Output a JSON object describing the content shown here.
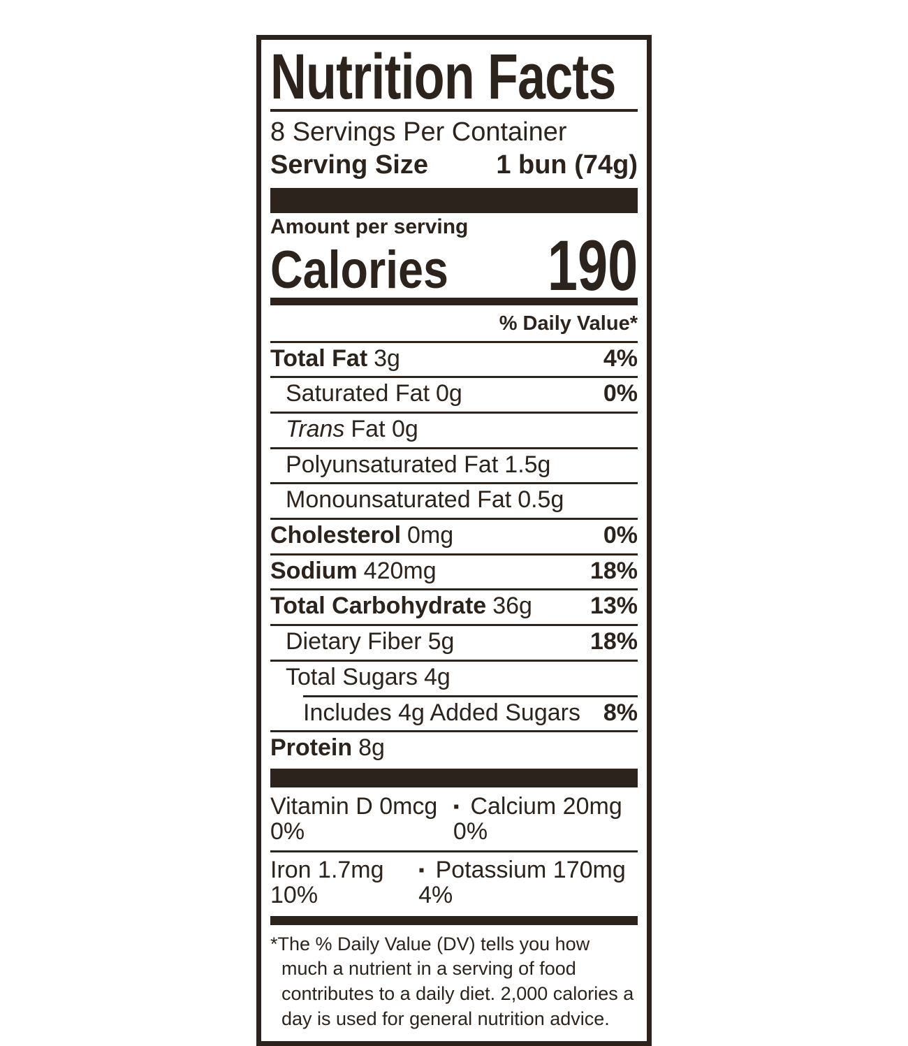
{
  "label": {
    "title": "Nutrition Facts",
    "servings_per_container": "8 Servings Per Container",
    "serving_size_label": "Serving Size",
    "serving_size_value": "1 bun (74g)",
    "amount_per_serving": "Amount per serving",
    "calories_label": "Calories",
    "calories_value": "190",
    "daily_value_header": "% Daily Value*",
    "colors": {
      "ink": "#2b231c",
      "background": "#ffffff"
    },
    "nutrients": [
      {
        "name": "Total Fat",
        "amount": "3g",
        "dv": "4%"
      },
      {
        "name": "Saturated Fat",
        "amount": "0g",
        "dv": "0%"
      },
      {
        "name": "Trans",
        "amount": "Fat 0g",
        "dv": ""
      },
      {
        "name": "Polyunsaturated Fat",
        "amount": "1.5g",
        "dv": ""
      },
      {
        "name": "Monounsaturated Fat",
        "amount": "0.5g",
        "dv": ""
      },
      {
        "name": "Cholesterol",
        "amount": "0mg",
        "dv": "0%"
      },
      {
        "name": "Sodium",
        "amount": "420mg",
        "dv": "18%"
      },
      {
        "name": "Total Carbohydrate",
        "amount": "36g",
        "dv": "13%"
      },
      {
        "name": "Dietary Fiber",
        "amount": "5g",
        "dv": "18%"
      },
      {
        "name": "Total Sugars",
        "amount": "4g",
        "dv": ""
      },
      {
        "name": "Includes 4g Added Sugars",
        "amount": "",
        "dv": "8%"
      },
      {
        "name": "Protein",
        "amount": "8g",
        "dv": ""
      }
    ],
    "micronutrients": [
      {
        "left": "Vitamin D 0mcg 0%",
        "right": "Calcium 20mg 0%"
      },
      {
        "left": "Iron 1.7mg 10%",
        "right": "Potassium 170mg 4%"
      }
    ],
    "bullet_icon": "▪",
    "footnote_marker": "*",
    "footnote": "The % Daily Value (DV) tells you how much a nutrient in a serving of food contributes to a daily diet. 2,000 calories a day is used for general nutrition advice."
  }
}
